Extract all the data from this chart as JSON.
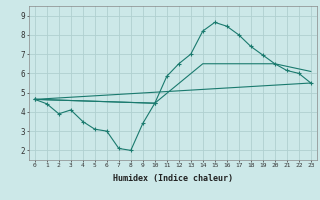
{
  "bg_color": "#cce8e8",
  "grid_color": "#b0d0d0",
  "line_color": "#1a7a6e",
  "line1_x": [
    0,
    1,
    2,
    3,
    4,
    5,
    6,
    7,
    8,
    9,
    10
  ],
  "line1_y": [
    4.65,
    4.42,
    3.9,
    4.1,
    3.5,
    3.1,
    3.0,
    2.1,
    2.0,
    3.4,
    4.45
  ],
  "line2_x": [
    0,
    10,
    11,
    12,
    13,
    14,
    15,
    16,
    17,
    18,
    19,
    20,
    21,
    22,
    23
  ],
  "line2_y": [
    4.65,
    4.45,
    5.85,
    6.5,
    7.0,
    8.2,
    8.65,
    8.45,
    8.0,
    7.4,
    6.95,
    6.5,
    6.15,
    6.0,
    5.5
  ],
  "line3_x": [
    0,
    23
  ],
  "line3_y": [
    4.65,
    5.5
  ],
  "line4_x": [
    0,
    10,
    14,
    20,
    23
  ],
  "line4_y": [
    4.65,
    4.45,
    6.5,
    6.5,
    6.1
  ],
  "xlim": [
    -0.5,
    23.5
  ],
  "ylim": [
    1.5,
    9.5
  ],
  "yticks": [
    2,
    3,
    4,
    5,
    6,
    7,
    8,
    9
  ],
  "xticks": [
    0,
    1,
    2,
    3,
    4,
    5,
    6,
    7,
    8,
    9,
    10,
    11,
    12,
    13,
    14,
    15,
    16,
    17,
    18,
    19,
    20,
    21,
    22,
    23
  ],
  "xlabel": "Humidex (Indice chaleur)"
}
